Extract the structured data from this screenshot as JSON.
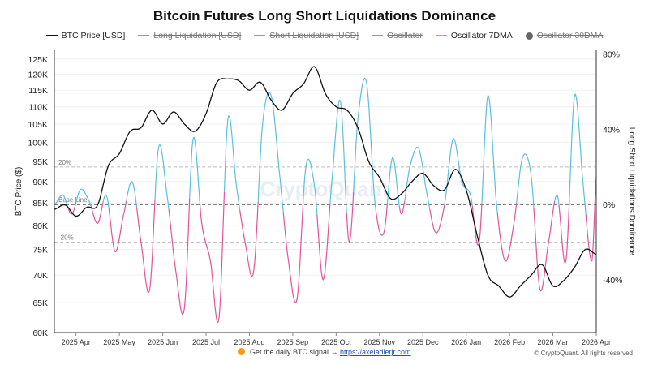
{
  "title": "Bitcoin Futures Long Short Liquidations Dominance",
  "legend": [
    {
      "label": "BTC Price [USD]",
      "color": "#111111",
      "active": true,
      "type": "line"
    },
    {
      "label": "Long Liquidation [USD]",
      "color": "#999999",
      "active": false,
      "type": "line"
    },
    {
      "label": "Short Liquidation [USD]",
      "color": "#999999",
      "active": false,
      "type": "line"
    },
    {
      "label": "Oscillator",
      "color": "#999999",
      "active": false,
      "type": "line"
    },
    {
      "label": "Oscillator 7DMA",
      "color": "#5bc0de",
      "active": true,
      "type": "line"
    },
    {
      "label": "Oscillator 30DMA",
      "color": "#666666",
      "active": false,
      "type": "dot"
    }
  ],
  "watermark": "CryptoQuant",
  "footer": {
    "text": "Get the daily BTC signal →",
    "link": "https://axeladlerjr.com",
    "copyright": "© CryptoQuant. All rights reserved"
  },
  "chart_data": {
    "type": "line",
    "x_labels": [
      "2025 Apr",
      "2025 May",
      "2025 Jun",
      "2025 Jul",
      "2025 Aug",
      "2025 Sep",
      "2025 Oct",
      "2025 Nov",
      "2025 Dec",
      "2026 Jan",
      "2026 Feb",
      "2026 Mar",
      "2026 Apr"
    ],
    "y_left": {
      "label": "BTC Price ($)",
      "scale": "log",
      "range": [
        60000,
        128000
      ],
      "ticks": [
        60000,
        65000,
        70000,
        75000,
        80000,
        85000,
        90000,
        95000,
        100000,
        105000,
        110000,
        115000,
        120000,
        125000
      ],
      "tick_labels": [
        "60K",
        "65K",
        "70K",
        "75K",
        "80K",
        "85K",
        "90K",
        "95K",
        "100K",
        "105K",
        "110K",
        "115K",
        "120K",
        "125K"
      ]
    },
    "y_right": {
      "label": "Long Short Liquidations Dominance",
      "range": [
        -0.68,
        0.82
      ],
      "ticks": [
        -0.4,
        0,
        0.4,
        0.8
      ],
      "tick_labels": [
        "-40%",
        "0%",
        "40%",
        "80%"
      ]
    },
    "reference_lines": [
      {
        "value": 0.2,
        "label": "20%"
      },
      {
        "value": 0,
        "label": "Base Line"
      },
      {
        "value": -0.2,
        "label": "-20%"
      }
    ],
    "colors": {
      "price": "#111111",
      "osc_positive": "#5bc0de",
      "osc_negative": "#e0559a"
    },
    "series": [
      {
        "name": "BTC Price [USD]",
        "axis": "left",
        "x": [
          0,
          0.25,
          0.5,
          0.75,
          1,
          1.25,
          1.5,
          1.75,
          2,
          2.25,
          2.5,
          2.75,
          3,
          3.25,
          3.5,
          3.75,
          4,
          4.25,
          4.5,
          4.75,
          5,
          5.25,
          5.5,
          5.75,
          6,
          6.25,
          6.5,
          6.75,
          7,
          7.25,
          7.5,
          7.75,
          8,
          8.25,
          8.5,
          8.75,
          9,
          9.25,
          9.5,
          9.75,
          10,
          10.25,
          10.5,
          10.75,
          11,
          11.25,
          11.5,
          11.75,
          12,
          12.25,
          12.5
        ],
        "y": [
          83500,
          84500,
          82000,
          84000,
          84500,
          94000,
          97000,
          103000,
          104000,
          109000,
          105000,
          108500,
          105000,
          103000,
          108000,
          117500,
          118500,
          118000,
          115000,
          117500,
          112000,
          109000,
          114000,
          117000,
          122500,
          114000,
          110000,
          109000,
          104000,
          95000,
          91000,
          86000,
          87000,
          90000,
          92000,
          89000,
          88000,
          93000,
          88000,
          78000,
          70000,
          68000,
          66000,
          68000,
          70000,
          72000,
          68000,
          69000,
          71500,
          75000,
          74000
        ]
      },
      {
        "name": "Oscillator 7DMA",
        "axis": "right",
        "x": [
          0,
          0.2,
          0.4,
          0.6,
          0.8,
          1,
          1.2,
          1.4,
          1.6,
          1.8,
          2,
          2.2,
          2.4,
          2.6,
          2.8,
          3,
          3.2,
          3.4,
          3.6,
          3.8,
          4,
          4.2,
          4.4,
          4.6,
          4.8,
          5,
          5.2,
          5.4,
          5.6,
          5.8,
          6,
          6.2,
          6.4,
          6.6,
          6.8,
          7,
          7.2,
          7.4,
          7.6,
          7.8,
          8,
          8.2,
          8.4,
          8.6,
          8.8,
          9,
          9.2,
          9.4,
          9.6,
          9.8,
          10,
          10.2,
          10.4,
          10.6,
          10.8,
          11,
          11.2,
          11.4,
          11.6,
          11.8,
          12,
          12.2,
          12.4,
          12.5
        ],
        "y": [
          0.0,
          0.05,
          -0.05,
          0.08,
          0.02,
          -0.1,
          0.05,
          -0.25,
          -0.05,
          0.12,
          -0.2,
          -0.45,
          0.3,
          0.05,
          -0.35,
          -0.55,
          0.35,
          -0.1,
          -0.3,
          -0.6,
          0.45,
          0.1,
          -0.2,
          -0.35,
          0.42,
          0.58,
          0.15,
          -0.3,
          -0.5,
          0.2,
          0.1,
          -0.4,
          0.12,
          0.55,
          -0.2,
          0.45,
          0.65,
          0.0,
          -0.15,
          0.25,
          -0.05,
          0.2,
          0.3,
          0.05,
          -0.15,
          0.0,
          0.35,
          0.12,
          0.05,
          -0.2,
          0.58,
          0.0,
          -0.3,
          -0.1,
          0.25,
          0.15,
          -0.45,
          -0.2,
          0.05,
          -0.3,
          0.58,
          0.1,
          -0.3,
          0.15
        ]
      }
    ]
  }
}
